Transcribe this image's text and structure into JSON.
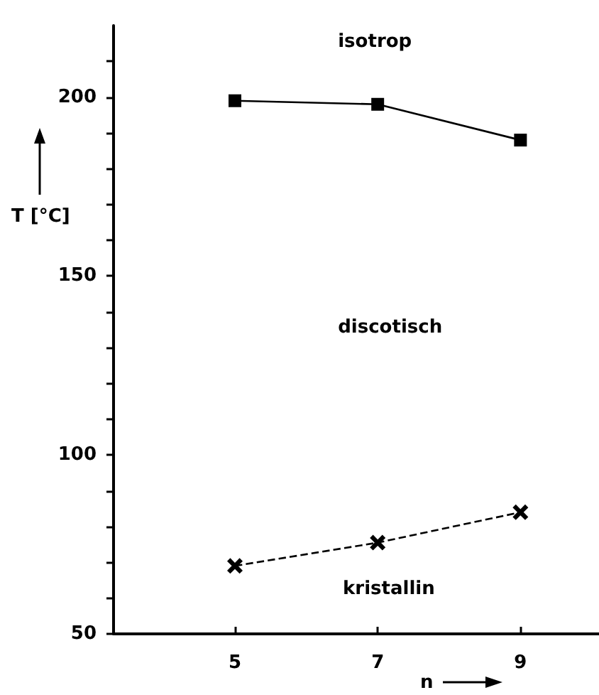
{
  "chart_data": {
    "type": "line",
    "xlabel": "n",
    "ylabel": "T [°C]",
    "x": [
      5,
      7,
      9
    ],
    "series": [
      {
        "color": "#000000",
        "values": [
          199,
          198,
          188
        ],
        "marker": "square",
        "line_style": "solid"
      },
      {
        "color": "#000000",
        "values": [
          69,
          75.5,
          84
        ],
        "marker": "cross",
        "line_style": "dashed"
      }
    ],
    "xlim": [
      3.3,
      10.1
    ],
    "xticks": [
      5,
      7,
      9
    ],
    "ylim": [
      50,
      220
    ],
    "yticks": [
      50,
      {
        "value": 60,
        "label": null
      },
      {
        "value": 70,
        "label": null
      },
      {
        "value": 80,
        "label": null
      },
      {
        "value": 90,
        "label": null
      },
      100,
      {
        "value": 110,
        "label": null
      },
      {
        "value": 120,
        "label": null
      },
      {
        "value": 130,
        "label": null
      },
      {
        "value": 140,
        "label": null
      },
      150,
      {
        "value": 160,
        "label": null
      },
      {
        "value": 170,
        "label": null
      },
      {
        "value": 180,
        "label": null
      },
      {
        "value": 190,
        "label": null
      },
      200,
      {
        "value": 210,
        "label": null
      }
    ],
    "annotations": [
      "isotrop",
      "discotisch",
      "kristallin"
    ]
  }
}
